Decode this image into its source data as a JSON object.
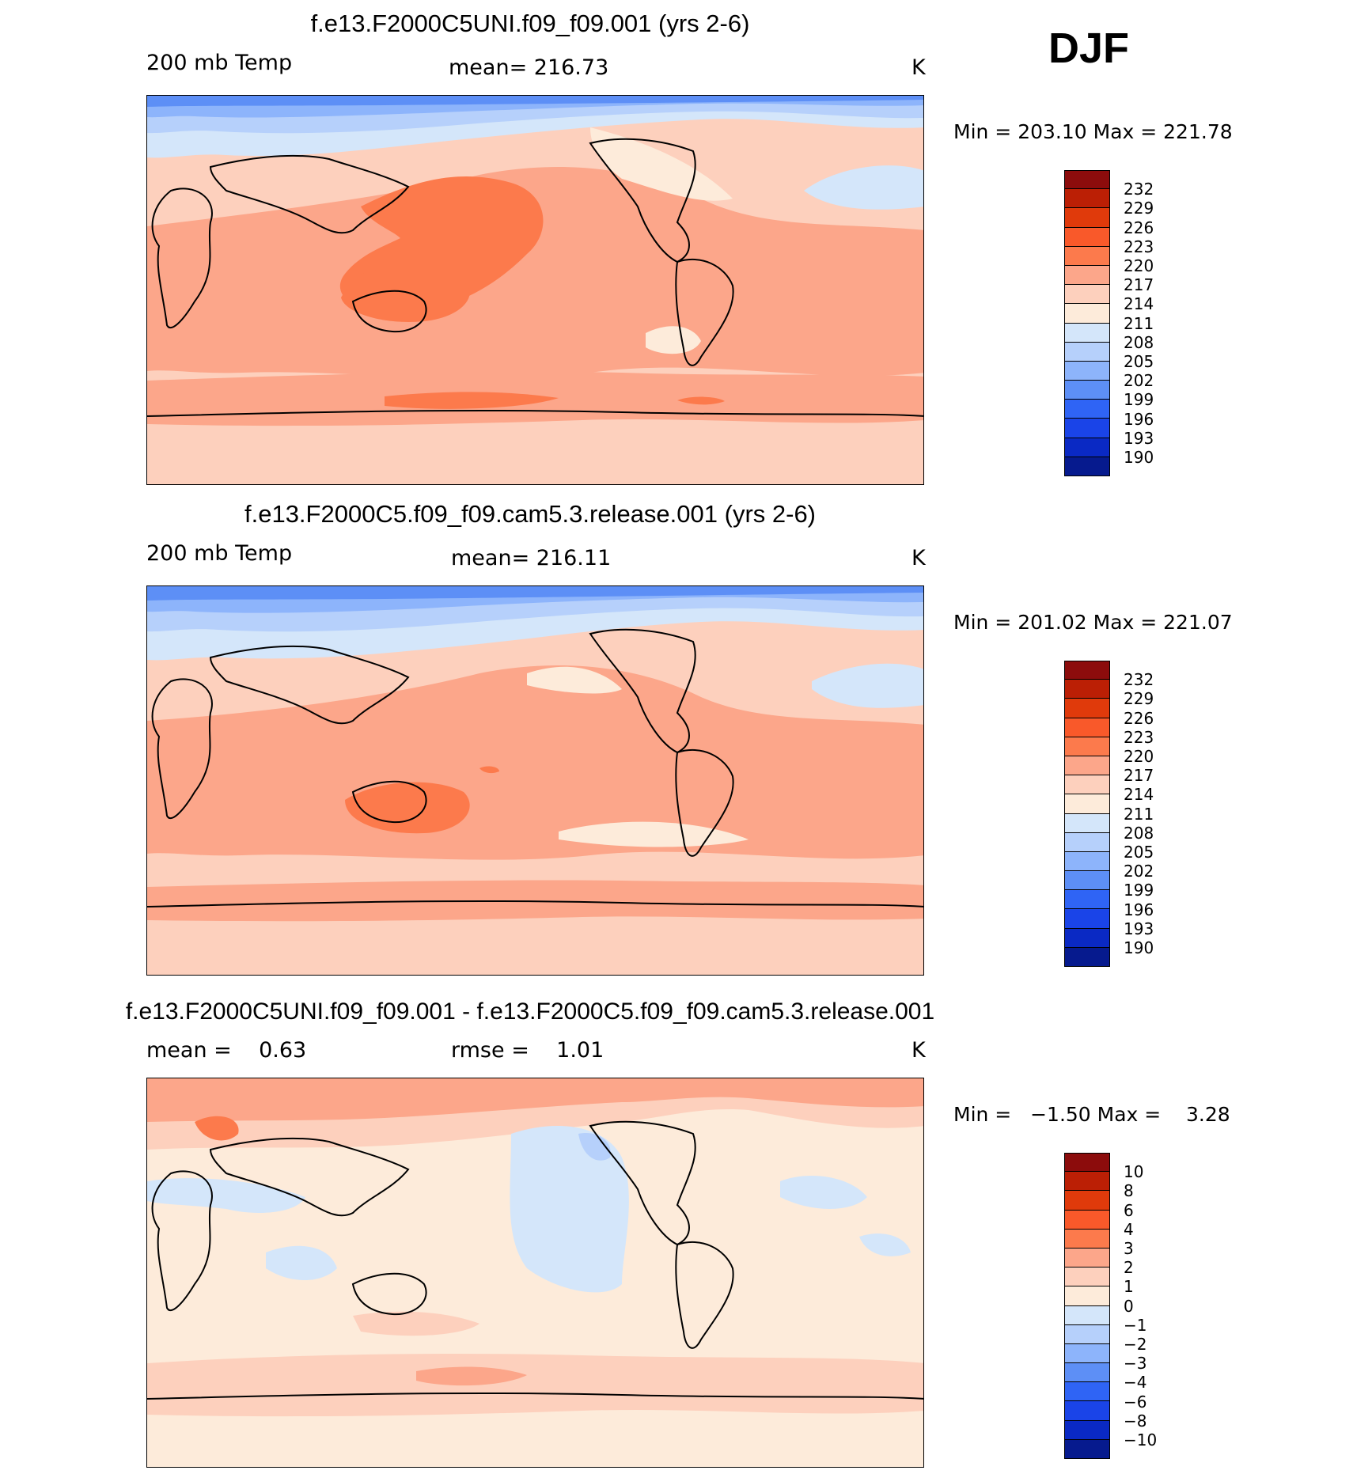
{
  "season": "DJF",
  "panels": [
    {
      "title": "f.e13.F2000C5UNI.f09_f09.001 (yrs 2-6)",
      "left_label": "200 mb Temp",
      "center_label": "mean= 216.73",
      "units": "K",
      "minmax": "Min = 203.10 Max = 221.78",
      "colorbar": {
        "levels": [
          "232",
          "229",
          "226",
          "223",
          "220",
          "217",
          "214",
          "211",
          "208",
          "205",
          "202",
          "199",
          "196",
          "193",
          "190"
        ],
        "colors": [
          "#8c0c0c",
          "#bb1f05",
          "#e03a0b",
          "#f9592a",
          "#fc7a4c",
          "#fca68a",
          "#fdd0bd",
          "#fdebda",
          "#d4e6fa",
          "#b6d0fb",
          "#8db4fb",
          "#5d8ff6",
          "#2f64f5",
          "#1a44e8",
          "#0a29c4",
          "#061a8e"
        ]
      }
    },
    {
      "title": "f.e13.F2000C5.f09_f09.cam5.3.release.001 (yrs 2-6)",
      "left_label": "200 mb Temp",
      "center_label": "mean= 216.11",
      "units": "K",
      "minmax": "Min = 201.02 Max = 221.07",
      "colorbar": {
        "levels": [
          "232",
          "229",
          "226",
          "223",
          "220",
          "217",
          "214",
          "211",
          "208",
          "205",
          "202",
          "199",
          "196",
          "193",
          "190"
        ],
        "colors": [
          "#8c0c0c",
          "#bb1f05",
          "#e03a0b",
          "#f9592a",
          "#fc7a4c",
          "#fca68a",
          "#fdd0bd",
          "#fdebda",
          "#d4e6fa",
          "#b6d0fb",
          "#8db4fb",
          "#5d8ff6",
          "#2f64f5",
          "#1a44e8",
          "#0a29c4",
          "#061a8e"
        ]
      }
    },
    {
      "title": "f.e13.F2000C5UNI.f09_f09.001 - f.e13.F2000C5.f09_f09.cam5.3.release.001",
      "left_label": "mean =    0.63",
      "center_label": "rmse =    1.01",
      "units": "K",
      "minmax": "Min =   −1.50 Max =    3.28",
      "colorbar": {
        "levels": [
          "10",
          "8",
          "6",
          "4",
          "3",
          "2",
          "1",
          "0",
          "−1",
          "−2",
          "−3",
          "−4",
          "−6",
          "−8",
          "−10"
        ],
        "colors": [
          "#8c0c0c",
          "#bb1f05",
          "#e03a0b",
          "#f9592a",
          "#fc7a4c",
          "#fca68a",
          "#fdd0bd",
          "#fdebda",
          "#d4e6fa",
          "#b6d0fb",
          "#8db4fb",
          "#5d8ff6",
          "#2f64f5",
          "#1a44e8",
          "#0a29c4",
          "#061a8e"
        ]
      }
    }
  ]
}
